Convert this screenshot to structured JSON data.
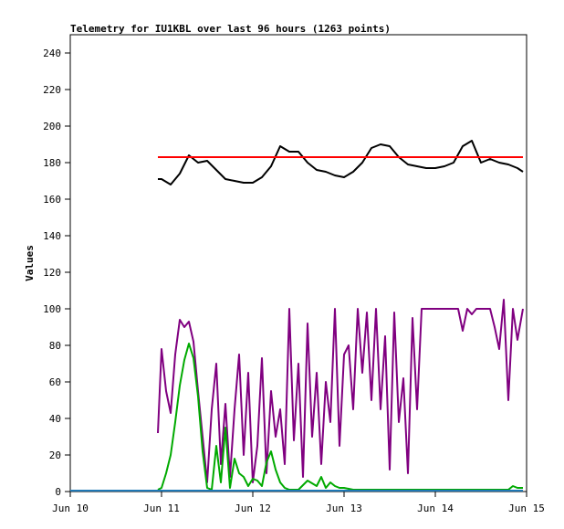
{
  "chart_data": {
    "type": "line",
    "title": "Telemetry for IU1KBL over last 96 hours (1263 points)",
    "xlabel": "",
    "ylabel": "Values",
    "ylim": [
      0,
      250
    ],
    "yticks": [
      0,
      20,
      40,
      60,
      80,
      100,
      120,
      140,
      160,
      180,
      200,
      220,
      240
    ],
    "xlim": [
      0,
      5
    ],
    "xticks": [
      {
        "x": 0,
        "label": "Jun 10"
      },
      {
        "x": 1,
        "label": "Jun 11"
      },
      {
        "x": 2,
        "label": "Jun 12"
      },
      {
        "x": 3,
        "label": "Jun 13"
      },
      {
        "x": 4,
        "label": "Jun 14"
      },
      {
        "x": 5,
        "label": "Jun 15"
      }
    ],
    "grid": false,
    "series": [
      {
        "color": "#000000",
        "x": [
          0.96,
          1.0,
          1.1,
          1.2,
          1.3,
          1.4,
          1.5,
          1.6,
          1.7,
          1.8,
          1.9,
          2.0,
          2.1,
          2.2,
          2.3,
          2.4,
          2.5,
          2.6,
          2.7,
          2.8,
          2.9,
          3.0,
          3.1,
          3.2,
          3.3,
          3.4,
          3.5,
          3.6,
          3.7,
          3.8,
          3.9,
          4.0,
          4.1,
          4.2,
          4.3,
          4.4,
          4.5,
          4.6,
          4.7,
          4.8,
          4.9,
          4.96
        ],
        "y": [
          171,
          171,
          168,
          174,
          184,
          180,
          181,
          176,
          171,
          170,
          169,
          169,
          172,
          178,
          189,
          186,
          186,
          180,
          176,
          175,
          173,
          172,
          175,
          180,
          188,
          190,
          189,
          183,
          179,
          178,
          177,
          177,
          178,
          180,
          189,
          192,
          180,
          182,
          180,
          179,
          177,
          175
        ]
      },
      {
        "color": "#ff0000",
        "x": [
          0.96,
          4.96
        ],
        "y": [
          183,
          183
        ]
      },
      {
        "color": "#800080",
        "x": [
          0.96,
          1.0,
          1.05,
          1.1,
          1.15,
          1.2,
          1.25,
          1.3,
          1.35,
          1.4,
          1.45,
          1.5,
          1.55,
          1.6,
          1.65,
          1.7,
          1.75,
          1.8,
          1.85,
          1.9,
          1.95,
          2.0,
          2.05,
          2.1,
          2.15,
          2.2,
          2.25,
          2.3,
          2.35,
          2.4,
          2.45,
          2.5,
          2.55,
          2.6,
          2.65,
          2.7,
          2.75,
          2.8,
          2.85,
          2.9,
          2.95,
          3.0,
          3.05,
          3.1,
          3.15,
          3.2,
          3.25,
          3.3,
          3.35,
          3.4,
          3.45,
          3.5,
          3.55,
          3.6,
          3.65,
          3.7,
          3.75,
          3.8,
          3.85,
          3.9,
          3.95,
          4.0,
          4.1,
          4.2,
          4.25,
          4.3,
          4.35,
          4.4,
          4.45,
          4.5,
          4.55,
          4.6,
          4.65,
          4.7,
          4.75,
          4.8,
          4.85,
          4.9,
          4.96
        ],
        "y": [
          32,
          78,
          55,
          43,
          75,
          94,
          90,
          93,
          82,
          55,
          30,
          5,
          45,
          70,
          15,
          48,
          8,
          45,
          75,
          20,
          65,
          5,
          25,
          73,
          10,
          55,
          30,
          45,
          15,
          100,
          28,
          70,
          8,
          92,
          30,
          65,
          15,
          60,
          38,
          100,
          25,
          75,
          80,
          45,
          100,
          65,
          98,
          50,
          100,
          45,
          85,
          12,
          98,
          38,
          62,
          10,
          95,
          45,
          100,
          100,
          100,
          100,
          100,
          100,
          100,
          88,
          100,
          97,
          100,
          100,
          100,
          100,
          90,
          78,
          105,
          50,
          100,
          83,
          100
        ]
      },
      {
        "color": "#00aa00",
        "x": [
          0.96,
          1.0,
          1.05,
          1.1,
          1.15,
          1.2,
          1.25,
          1.3,
          1.35,
          1.4,
          1.45,
          1.5,
          1.55,
          1.6,
          1.65,
          1.7,
          1.75,
          1.8,
          1.85,
          1.9,
          1.95,
          2.0,
          2.05,
          2.1,
          2.15,
          2.2,
          2.25,
          2.3,
          2.35,
          2.4,
          2.5,
          2.6,
          2.7,
          2.75,
          2.8,
          2.85,
          2.9,
          2.95,
          3.0,
          3.1,
          3.5,
          4.0,
          4.5,
          4.7,
          4.75,
          4.8,
          4.85,
          4.9,
          4.96
        ],
        "y": [
          1,
          2,
          10,
          20,
          38,
          58,
          72,
          81,
          73,
          52,
          22,
          2,
          1,
          25,
          5,
          35,
          2,
          18,
          10,
          8,
          3,
          7,
          6,
          3,
          16,
          22,
          12,
          5,
          2,
          1,
          1,
          6,
          3,
          8,
          2,
          5,
          3,
          2,
          2,
          1,
          1,
          1,
          1,
          1,
          1,
          1,
          3,
          2,
          2
        ]
      },
      {
        "color": "#1f77b4",
        "x": [
          0,
          4.96
        ],
        "y": [
          0.5,
          0.5
        ]
      }
    ]
  }
}
